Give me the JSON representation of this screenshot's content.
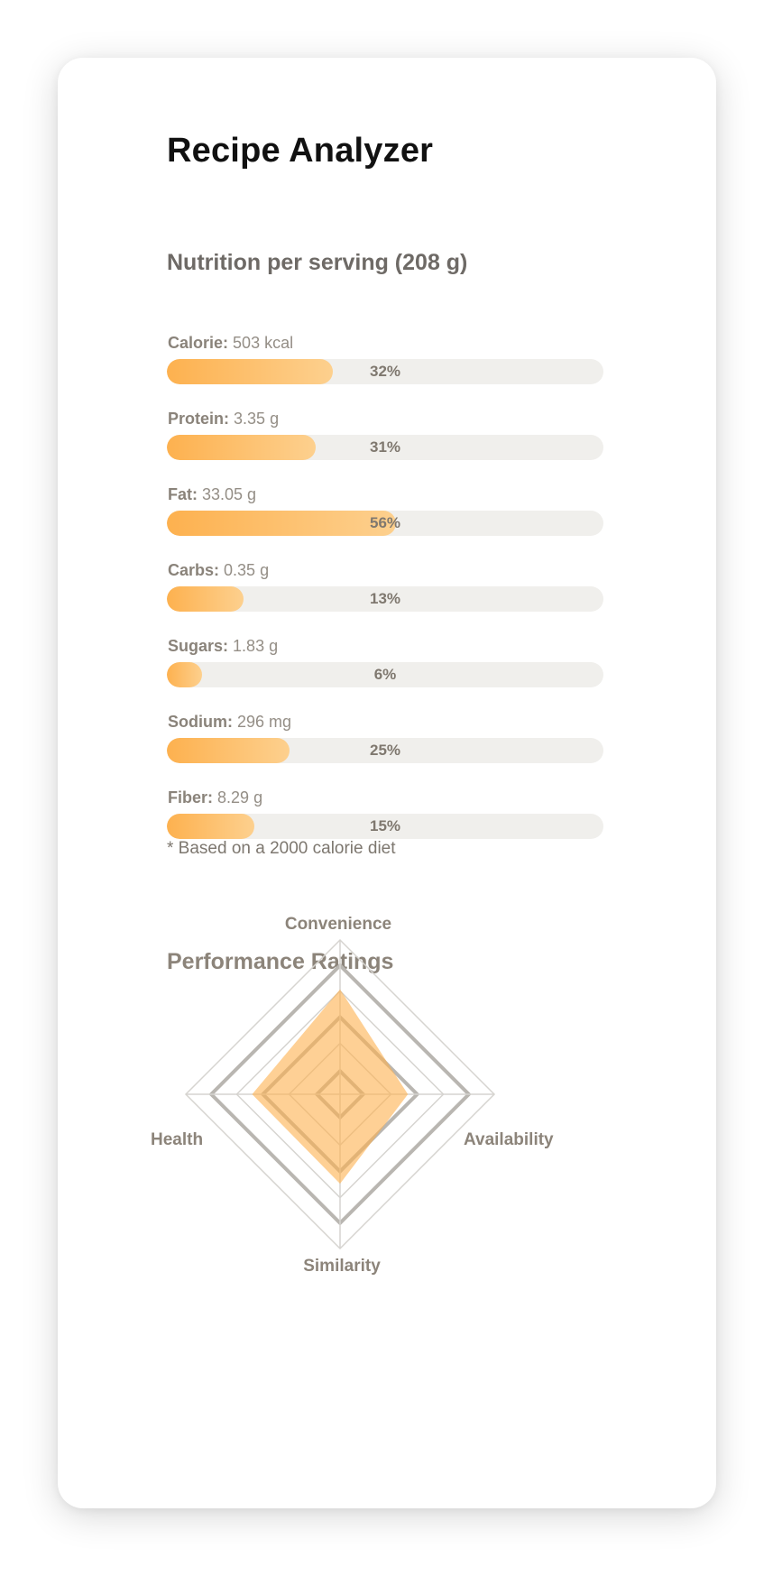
{
  "app": {
    "title": "Recipe Analyzer"
  },
  "nutrition": {
    "title": "Nutrition per serving (208 g)",
    "items": [
      {
        "name": "Calorie:",
        "amount": "503 kcal",
        "percent_label": "32%",
        "percent": 0.38
      },
      {
        "name": "Protein:",
        "amount": "3.35 g",
        "percent_label": "31%",
        "percent": 0.34
      },
      {
        "name": "Fat:",
        "amount": "33.05 g",
        "percent_label": "56%",
        "percent": 0.525
      },
      {
        "name": "Carbs:",
        "amount": "0.35 g",
        "percent_label": "13%",
        "percent": 0.175
      },
      {
        "name": "Sugars:",
        "amount": "1.83 g",
        "percent_label": "6%",
        "percent": 0.08
      },
      {
        "name": "Sodium:",
        "amount": "296 mg",
        "percent_label": "25%",
        "percent": 0.28
      },
      {
        "name": "Fiber:",
        "amount": "8.29 g",
        "percent_label": "15%",
        "percent": 0.2
      }
    ],
    "note": "* Based on a 2000 calorie diet"
  },
  "ratings": {
    "title": "Performance Ratings",
    "axes": [
      "Convenience",
      "Availability",
      "Similarity",
      "Health"
    ],
    "values": [
      0.68,
      0.44,
      0.58,
      0.57
    ],
    "fill_color": "#fdb14f"
  }
}
